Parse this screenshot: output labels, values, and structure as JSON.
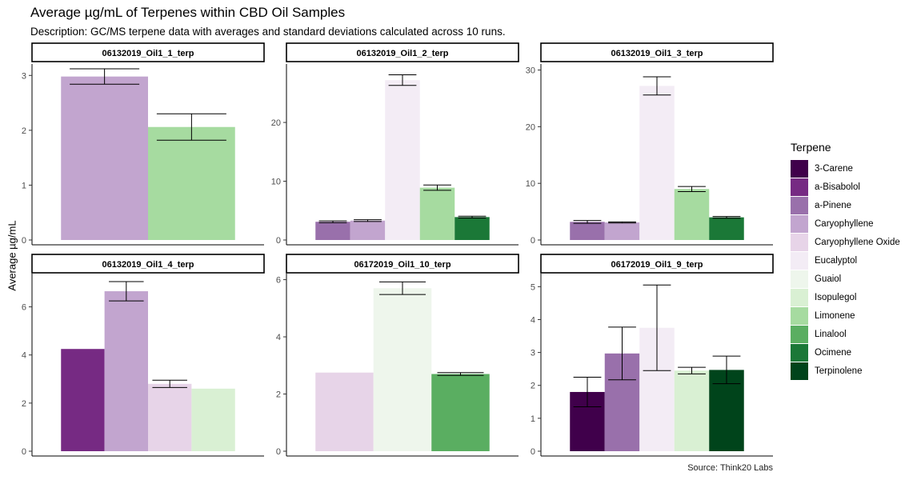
{
  "title": "Average µg/mL of Terpenes within CBD Oil Samples",
  "subtitle": "Description: GC/MS terpene data with averages and standard deviations calculated across 10 runs.",
  "caption": "Source: Think20 Labs",
  "ylabel": "Average µg/mL",
  "legend": {
    "title": "Terpene",
    "items": [
      {
        "name": "3-Carene",
        "color": "#40004b"
      },
      {
        "name": "a-Bisabolol",
        "color": "#762a83"
      },
      {
        "name": "a-Pinene",
        "color": "#9970ab"
      },
      {
        "name": "Caryophyllene",
        "color": "#c2a5cf"
      },
      {
        "name": "Caryophyllene Oxide",
        "color": "#e7d4e8"
      },
      {
        "name": "Eucalyptol",
        "color": "#f3ecf5"
      },
      {
        "name": "Guaiol",
        "color": "#eef6ec"
      },
      {
        "name": "Isopulegol",
        "color": "#d9f0d3"
      },
      {
        "name": "Limonene",
        "color": "#a6dba0"
      },
      {
        "name": "Linalool",
        "color": "#5aae61"
      },
      {
        "name": "Ocimene",
        "color": "#1b7837"
      },
      {
        "name": "Terpinolene",
        "color": "#00441b"
      }
    ]
  },
  "chart_data": {
    "type": "bar",
    "layout": "faceted",
    "facets": [
      {
        "title": "06132019_Oil1_1_terp",
        "ylim": [
          0,
          3.15
        ],
        "yticks": [
          0,
          1,
          2,
          3
        ],
        "bars": [
          {
            "terpene": "Caryophyllene",
            "value": 2.98,
            "sd": 0.14
          },
          {
            "terpene": "Limonene",
            "value": 2.06,
            "sd": 0.24
          }
        ]
      },
      {
        "title": "06132019_Oil1_2_terp",
        "ylim": [
          0,
          29.4
        ],
        "yticks": [
          0,
          10,
          20
        ],
        "bars": [
          {
            "terpene": "a-Pinene",
            "value": 3.1,
            "sd": 0.15
          },
          {
            "terpene": "Caryophyllene",
            "value": 3.3,
            "sd": 0.15
          },
          {
            "terpene": "Eucalyptol",
            "value": 27.2,
            "sd": 0.9
          },
          {
            "terpene": "Limonene",
            "value": 8.9,
            "sd": 0.45
          },
          {
            "terpene": "Ocimene",
            "value": 3.9,
            "sd": 0.15
          }
        ]
      },
      {
        "title": "06132019_Oil1_3_terp",
        "ylim": [
          0,
          30.5
        ],
        "yticks": [
          0,
          10,
          20,
          30
        ],
        "bars": [
          {
            "terpene": "a-Pinene",
            "value": 3.2,
            "sd": 0.25
          },
          {
            "terpene": "Caryophyllene",
            "value": 3.1,
            "sd": 0.1
          },
          {
            "terpene": "Eucalyptol",
            "value": 27.2,
            "sd": 1.6
          },
          {
            "terpene": "Limonene",
            "value": 9.0,
            "sd": 0.45
          },
          {
            "terpene": "Ocimene",
            "value": 4.0,
            "sd": 0.15
          }
        ]
      },
      {
        "title": "06132019_Oil1_4_terp",
        "ylim": [
          0,
          7.25
        ],
        "yticks": [
          0,
          2,
          4,
          6
        ],
        "bars": [
          {
            "terpene": "a-Bisabolol",
            "value": 4.25,
            "sd": null
          },
          {
            "terpene": "Caryophyllene",
            "value": 6.65,
            "sd": 0.4
          },
          {
            "terpene": "Caryophyllene Oxide",
            "value": 2.8,
            "sd": 0.15
          },
          {
            "terpene": "Isopulegol",
            "value": 2.6,
            "sd": null
          }
        ]
      },
      {
        "title": "06172019_Oil1_10_terp",
        "ylim": [
          0,
          6.1
        ],
        "yticks": [
          0,
          2,
          4,
          6
        ],
        "bars": [
          {
            "terpene": "Caryophyllene Oxide",
            "value": 2.75,
            "sd": null
          },
          {
            "terpene": "Guaiol",
            "value": 5.7,
            "sd": 0.22
          },
          {
            "terpene": "Linalool",
            "value": 2.7,
            "sd": 0.05
          }
        ]
      },
      {
        "title": "06172019_Oil1_9_terp",
        "ylim": [
          0,
          5.3
        ],
        "yticks": [
          0,
          1,
          2,
          3,
          4,
          5
        ],
        "bars": [
          {
            "terpene": "3-Carene",
            "value": 1.8,
            "sd": 0.45
          },
          {
            "terpene": "a-Pinene",
            "value": 2.97,
            "sd": 0.8
          },
          {
            "terpene": "Eucalyptol",
            "value": 3.75,
            "sd": 1.3
          },
          {
            "terpene": "Isopulegol",
            "value": 2.45,
            "sd": 0.1
          },
          {
            "terpene": "Terpinolene",
            "value": 2.47,
            "sd": 0.42
          }
        ]
      }
    ]
  }
}
